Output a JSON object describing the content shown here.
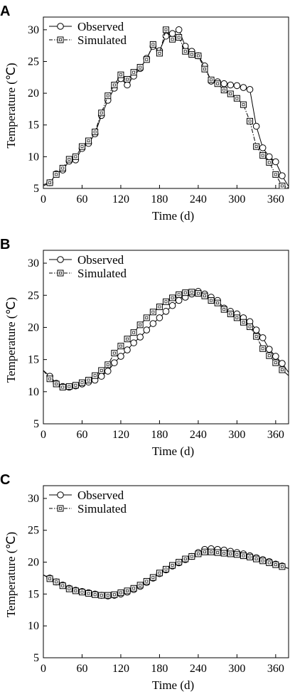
{
  "chart_data": [
    {
      "panel": "A",
      "type": "line",
      "xlabel": "Time (d)",
      "ylabel": "Temperature (℃)",
      "xlim": [
        0,
        380
      ],
      "ylim": [
        5,
        32
      ],
      "xticks": [
        0,
        60,
        120,
        180,
        240,
        300,
        360
      ],
      "yticks": [
        5,
        10,
        15,
        20,
        25,
        30
      ],
      "legend_position": "top-left",
      "series": [
        {
          "name": "Observed",
          "marker": "circle",
          "line": "solid",
          "x": [
            0,
            10,
            20,
            30,
            40,
            50,
            60,
            70,
            80,
            90,
            100,
            110,
            120,
            130,
            140,
            150,
            160,
            170,
            180,
            190,
            200,
            210,
            220,
            230,
            240,
            250,
            260,
            270,
            280,
            290,
            300,
            310,
            320,
            330,
            340,
            350,
            360,
            370,
            380
          ],
          "y": [
            5.6,
            5.9,
            7.3,
            7.9,
            9.3,
            9.5,
            11.3,
            12.1,
            13.6,
            16.5,
            18.9,
            20.8,
            22.3,
            21.3,
            22.7,
            23.9,
            25.5,
            27.4,
            26.7,
            29.0,
            29.4,
            30.0,
            27.4,
            26.6,
            25.9,
            24.3,
            21.9,
            21.8,
            21.5,
            21.3,
            21.2,
            20.9,
            20.6,
            14.8,
            11.4,
            10.0,
            9.2,
            7.0,
            5.3
          ]
        },
        {
          "name": "Simulated",
          "marker": "square",
          "line": "dash-dot",
          "x": [
            0,
            10,
            20,
            30,
            40,
            50,
            60,
            70,
            80,
            90,
            100,
            110,
            120,
            130,
            140,
            150,
            160,
            170,
            180,
            190,
            200,
            210,
            220,
            230,
            240,
            250,
            260,
            270,
            280,
            290,
            300,
            310,
            320,
            330,
            340,
            350,
            360,
            370,
            380
          ],
          "y": [
            5.4,
            5.9,
            7.2,
            8.2,
            9.6,
            10.0,
            11.6,
            12.5,
            13.9,
            16.9,
            19.6,
            21.3,
            22.9,
            22.2,
            23.3,
            24.1,
            25.3,
            27.7,
            26.3,
            30.0,
            28.5,
            28.8,
            26.6,
            26.1,
            25.9,
            23.8,
            22.1,
            21.5,
            20.5,
            19.9,
            19.2,
            18.2,
            15.6,
            11.6,
            10.2,
            9.1,
            7.2,
            5.4,
            5.1
          ]
        }
      ]
    },
    {
      "panel": "B",
      "type": "line",
      "xlabel": "Time (d)",
      "ylabel": "Temperature (℃)",
      "xlim": [
        0,
        380
      ],
      "ylim": [
        5,
        32
      ],
      "xticks": [
        0,
        60,
        120,
        180,
        240,
        300,
        360
      ],
      "yticks": [
        5,
        10,
        15,
        20,
        25,
        30
      ],
      "legend_position": "top-left",
      "series": [
        {
          "name": "Observed",
          "marker": "circle",
          "line": "solid",
          "x": [
            0,
            10,
            20,
            30,
            40,
            50,
            60,
            70,
            80,
            90,
            100,
            110,
            120,
            130,
            140,
            150,
            160,
            170,
            180,
            190,
            200,
            210,
            220,
            230,
            240,
            250,
            260,
            270,
            280,
            290,
            300,
            310,
            320,
            330,
            340,
            350,
            360,
            370,
            380
          ],
          "y": [
            13.3,
            12.4,
            11.3,
            10.8,
            10.7,
            10.9,
            11.2,
            11.5,
            11.8,
            12.4,
            13.2,
            14.5,
            15.5,
            16.5,
            17.6,
            18.5,
            19.6,
            20.6,
            21.5,
            22.5,
            23.4,
            24.2,
            24.7,
            25.2,
            25.6,
            25.2,
            24.7,
            24.2,
            23.0,
            22.5,
            22.1,
            21.5,
            20.9,
            19.6,
            18.4,
            16.6,
            15.5,
            14.4,
            13.0
          ]
        },
        {
          "name": "Simulated",
          "marker": "square",
          "line": "dash-dot",
          "x": [
            0,
            10,
            20,
            30,
            40,
            50,
            60,
            70,
            80,
            90,
            100,
            110,
            120,
            130,
            140,
            150,
            160,
            170,
            180,
            190,
            200,
            210,
            220,
            230,
            240,
            250,
            260,
            270,
            280,
            290,
            300,
            310,
            320,
            330,
            340,
            350,
            360,
            370,
            380
          ],
          "y": [
            13.3,
            12.0,
            11.2,
            10.7,
            10.8,
            11.0,
            11.4,
            11.8,
            12.5,
            13.3,
            14.2,
            16.0,
            17.1,
            18.2,
            19.2,
            20.4,
            21.5,
            22.4,
            23.2,
            24.0,
            24.6,
            25.1,
            25.4,
            25.5,
            25.3,
            24.9,
            24.2,
            23.8,
            22.8,
            22.1,
            21.5,
            20.8,
            20.1,
            18.6,
            16.7,
            15.6,
            14.5,
            13.4,
            12.5
          ]
        }
      ]
    },
    {
      "panel": "C",
      "type": "line",
      "xlabel": "Time (d)",
      "ylabel": "Temperature (℃)",
      "xlim": [
        0,
        380
      ],
      "ylim": [
        5,
        32
      ],
      "xticks": [
        0,
        60,
        120,
        180,
        240,
        300,
        360
      ],
      "yticks": [
        5,
        10,
        15,
        20,
        25,
        30
      ],
      "legend_position": "top-left",
      "series": [
        {
          "name": "Observed",
          "marker": "circle",
          "line": "solid",
          "x": [
            0,
            10,
            20,
            30,
            40,
            50,
            60,
            70,
            80,
            90,
            100,
            110,
            120,
            130,
            140,
            150,
            160,
            170,
            180,
            190,
            200,
            210,
            220,
            230,
            240,
            250,
            260,
            270,
            280,
            290,
            300,
            310,
            320,
            330,
            340,
            350,
            360,
            370,
            380
          ],
          "y": [
            18.0,
            17.5,
            16.9,
            16.4,
            15.9,
            15.6,
            15.4,
            15.2,
            15.0,
            14.8,
            14.7,
            14.8,
            15.0,
            15.3,
            15.7,
            16.2,
            16.8,
            17.5,
            18.2,
            18.8,
            19.4,
            19.9,
            20.4,
            20.9,
            21.5,
            22.0,
            22.1,
            22.0,
            21.9,
            21.7,
            21.5,
            21.3,
            21.0,
            20.7,
            20.4,
            20.1,
            19.7,
            19.4,
            19.0
          ]
        },
        {
          "name": "Simulated",
          "marker": "square",
          "line": "dash-dot",
          "x": [
            0,
            10,
            20,
            30,
            40,
            50,
            60,
            70,
            80,
            90,
            100,
            110,
            120,
            130,
            140,
            150,
            160,
            170,
            180,
            190,
            200,
            210,
            220,
            230,
            240,
            250,
            260,
            270,
            280,
            290,
            300,
            310,
            320,
            330,
            340,
            350,
            360,
            370,
            380
          ],
          "y": [
            18.0,
            17.4,
            16.9,
            16.3,
            15.8,
            15.5,
            15.3,
            15.1,
            14.9,
            14.8,
            14.8,
            14.9,
            15.2,
            15.5,
            15.9,
            16.4,
            17.0,
            17.6,
            18.3,
            18.9,
            19.5,
            20.0,
            20.5,
            20.9,
            21.3,
            21.6,
            21.6,
            21.5,
            21.4,
            21.3,
            21.2,
            21.0,
            20.8,
            20.5,
            20.2,
            19.9,
            19.6,
            19.3,
            19.0
          ]
        }
      ]
    }
  ]
}
